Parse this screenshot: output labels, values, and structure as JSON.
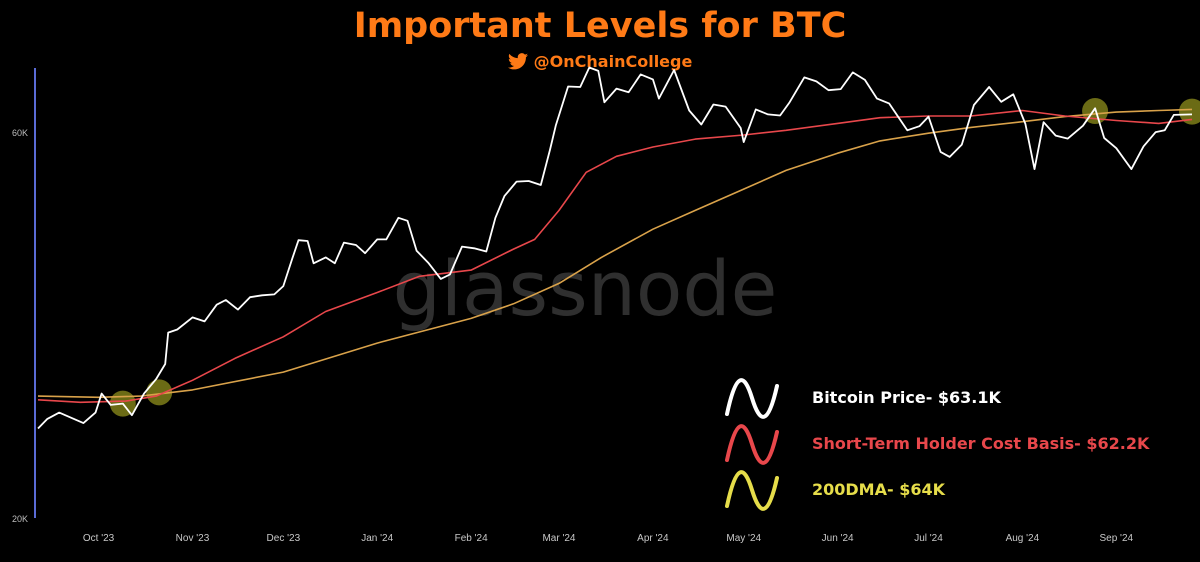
{
  "header": {
    "title": "Important Levels for BTC",
    "handle": "@OnChainCollege"
  },
  "watermark": "glassnode",
  "colors": {
    "title": "#ff7a16",
    "price": "#ffffff",
    "sth": "#e8474b",
    "dma": "#d9a24a",
    "legend_dma": "#e6dd4a",
    "highlight": "#ffff33",
    "axis": "#5a6bd6"
  },
  "chart_data": {
    "type": "line",
    "title": "Important Levels for BTC",
    "xlabel": "",
    "ylabel": "",
    "y_scale": "log",
    "ylim": [
      20000,
      72000
    ],
    "y_ticks": [
      {
        "label": "20K",
        "value": 20000
      },
      {
        "label": "60K",
        "value": 60000
      }
    ],
    "xlim": [
      "2023-09-11",
      "2024-09-26"
    ],
    "x_ticks": [
      {
        "label": "Oct '23",
        "date": "2023-10-01"
      },
      {
        "label": "Nov '23",
        "date": "2023-11-01"
      },
      {
        "label": "Dec '23",
        "date": "2023-12-01"
      },
      {
        "label": "Jan '24",
        "date": "2024-01-01"
      },
      {
        "label": "Feb '24",
        "date": "2024-02-01"
      },
      {
        "label": "Mar '24",
        "date": "2024-03-01"
      },
      {
        "label": "Apr '24",
        "date": "2024-04-01"
      },
      {
        "label": "May '24",
        "date": "2024-05-01"
      },
      {
        "label": "Jun '24",
        "date": "2024-06-01"
      },
      {
        "label": "Jul '24",
        "date": "2024-07-01"
      },
      {
        "label": "Aug '24",
        "date": "2024-08-01"
      },
      {
        "label": "Sep '24",
        "date": "2024-09-01"
      }
    ],
    "legend_position": "bottom-right",
    "grid": false,
    "series": [
      {
        "name": "Bitcoin Price- $63.1K",
        "color": "#ffffff",
        "points": [
          [
            "2023-09-11",
            25800
          ],
          [
            "2023-09-14",
            26500
          ],
          [
            "2023-09-18",
            27000
          ],
          [
            "2023-09-22",
            26600
          ],
          [
            "2023-09-26",
            26200
          ],
          [
            "2023-09-30",
            27000
          ],
          [
            "2023-10-02",
            28500
          ],
          [
            "2023-10-05",
            27600
          ],
          [
            "2023-10-09",
            27700
          ],
          [
            "2023-10-12",
            26800
          ],
          [
            "2023-10-16",
            28500
          ],
          [
            "2023-10-20",
            29700
          ],
          [
            "2023-10-23",
            31000
          ],
          [
            "2023-10-24",
            33900
          ],
          [
            "2023-10-27",
            34200
          ],
          [
            "2023-11-01",
            35400
          ],
          [
            "2023-11-05",
            35000
          ],
          [
            "2023-11-09",
            36700
          ],
          [
            "2023-11-12",
            37200
          ],
          [
            "2023-11-16",
            36200
          ],
          [
            "2023-11-20",
            37500
          ],
          [
            "2023-11-24",
            37700
          ],
          [
            "2023-11-28",
            37800
          ],
          [
            "2023-12-01",
            38700
          ],
          [
            "2023-12-04",
            41900
          ],
          [
            "2023-12-06",
            44100
          ],
          [
            "2023-12-09",
            44000
          ],
          [
            "2023-12-11",
            41300
          ],
          [
            "2023-12-15",
            42000
          ],
          [
            "2023-12-18",
            41300
          ],
          [
            "2023-12-21",
            43800
          ],
          [
            "2023-12-25",
            43500
          ],
          [
            "2023-12-28",
            42500
          ],
          [
            "2024-01-01",
            44200
          ],
          [
            "2024-01-04",
            44200
          ],
          [
            "2024-01-08",
            47000
          ],
          [
            "2024-01-11",
            46600
          ],
          [
            "2024-01-14",
            42800
          ],
          [
            "2024-01-18",
            41300
          ],
          [
            "2024-01-22",
            39500
          ],
          [
            "2024-01-25",
            40000
          ],
          [
            "2024-01-29",
            43300
          ],
          [
            "2024-02-02",
            43100
          ],
          [
            "2024-02-06",
            42700
          ],
          [
            "2024-02-09",
            47000
          ],
          [
            "2024-02-12",
            50000
          ],
          [
            "2024-02-16",
            52100
          ],
          [
            "2024-02-20",
            52200
          ],
          [
            "2024-02-24",
            51600
          ],
          [
            "2024-02-27",
            57000
          ],
          [
            "2024-02-29",
            61200
          ],
          [
            "2024-03-04",
            68300
          ],
          [
            "2024-03-08",
            68200
          ],
          [
            "2024-03-11",
            72100
          ],
          [
            "2024-03-14",
            71400
          ],
          [
            "2024-03-16",
            65300
          ],
          [
            "2024-03-20",
            67900
          ],
          [
            "2024-03-24",
            67200
          ],
          [
            "2024-03-28",
            70700
          ],
          [
            "2024-04-01",
            69700
          ],
          [
            "2024-04-03",
            66000
          ],
          [
            "2024-04-08",
            71600
          ],
          [
            "2024-04-13",
            63800
          ],
          [
            "2024-04-17",
            61300
          ],
          [
            "2024-04-21",
            64900
          ],
          [
            "2024-04-25",
            64500
          ],
          [
            "2024-04-30",
            60700
          ],
          [
            "2024-05-01",
            58300
          ],
          [
            "2024-05-05",
            64000
          ],
          [
            "2024-05-09",
            63100
          ],
          [
            "2024-05-13",
            62900
          ],
          [
            "2024-05-16",
            65200
          ],
          [
            "2024-05-21",
            70100
          ],
          [
            "2024-05-25",
            69300
          ],
          [
            "2024-05-29",
            67600
          ],
          [
            "2024-06-02",
            67800
          ],
          [
            "2024-06-06",
            71100
          ],
          [
            "2024-06-10",
            69600
          ],
          [
            "2024-06-14",
            66000
          ],
          [
            "2024-06-18",
            65100
          ],
          [
            "2024-06-24",
            60300
          ],
          [
            "2024-06-28",
            61000
          ],
          [
            "2024-07-01",
            62700
          ],
          [
            "2024-07-05",
            56700
          ],
          [
            "2024-07-08",
            55900
          ],
          [
            "2024-07-12",
            57900
          ],
          [
            "2024-07-16",
            64800
          ],
          [
            "2024-07-21",
            68200
          ],
          [
            "2024-07-25",
            65400
          ],
          [
            "2024-07-29",
            66800
          ],
          [
            "2024-08-02",
            61400
          ],
          [
            "2024-08-05",
            54000
          ],
          [
            "2024-08-08",
            61700
          ],
          [
            "2024-08-12",
            59400
          ],
          [
            "2024-08-16",
            58900
          ],
          [
            "2024-08-21",
            61100
          ],
          [
            "2024-08-25",
            64200
          ],
          [
            "2024-08-28",
            59000
          ],
          [
            "2024-09-01",
            57300
          ],
          [
            "2024-09-06",
            54000
          ],
          [
            "2024-09-10",
            57600
          ],
          [
            "2024-09-14",
            60000
          ],
          [
            "2024-09-17",
            60300
          ],
          [
            "2024-09-20",
            63000
          ],
          [
            "2024-09-26",
            63100
          ]
        ]
      },
      {
        "name": "Short-Term Holder Cost Basis- $62.2K",
        "color": "#e8474b",
        "points": [
          [
            "2023-09-11",
            28000
          ],
          [
            "2023-09-25",
            27800
          ],
          [
            "2023-10-10",
            27900
          ],
          [
            "2023-10-20",
            28300
          ],
          [
            "2023-11-01",
            29600
          ],
          [
            "2023-11-15",
            31500
          ],
          [
            "2023-12-01",
            33500
          ],
          [
            "2023-12-15",
            36000
          ],
          [
            "2024-01-01",
            38000
          ],
          [
            "2024-01-15",
            39800
          ],
          [
            "2024-02-01",
            40500
          ],
          [
            "2024-02-15",
            43000
          ],
          [
            "2024-02-22",
            44200
          ],
          [
            "2024-03-01",
            48000
          ],
          [
            "2024-03-10",
            53500
          ],
          [
            "2024-03-20",
            56000
          ],
          [
            "2024-04-01",
            57500
          ],
          [
            "2024-04-15",
            58800
          ],
          [
            "2024-05-01",
            59500
          ],
          [
            "2024-05-15",
            60300
          ],
          [
            "2024-06-01",
            61500
          ],
          [
            "2024-06-15",
            62500
          ],
          [
            "2024-07-01",
            62800
          ],
          [
            "2024-07-15",
            62800
          ],
          [
            "2024-08-01",
            63800
          ],
          [
            "2024-08-15",
            62800
          ],
          [
            "2024-09-01",
            62000
          ],
          [
            "2024-09-15",
            61500
          ],
          [
            "2024-09-26",
            62200
          ]
        ]
      },
      {
        "name": "200DMA- $64K",
        "color": "#d9a24a",
        "points": [
          [
            "2023-09-11",
            28300
          ],
          [
            "2023-10-01",
            28200
          ],
          [
            "2023-10-15",
            28300
          ],
          [
            "2023-11-01",
            28800
          ],
          [
            "2023-12-01",
            30300
          ],
          [
            "2024-01-01",
            32900
          ],
          [
            "2024-02-01",
            35300
          ],
          [
            "2024-02-15",
            36800
          ],
          [
            "2024-03-01",
            39000
          ],
          [
            "2024-03-15",
            42000
          ],
          [
            "2024-04-01",
            45500
          ],
          [
            "2024-04-15",
            48000
          ],
          [
            "2024-05-01",
            51000
          ],
          [
            "2024-05-15",
            53800
          ],
          [
            "2024-06-01",
            56500
          ],
          [
            "2024-06-15",
            58500
          ],
          [
            "2024-07-01",
            59800
          ],
          [
            "2024-07-15",
            60800
          ],
          [
            "2024-08-01",
            61800
          ],
          [
            "2024-08-15",
            62700
          ],
          [
            "2024-09-01",
            63500
          ],
          [
            "2024-09-15",
            63800
          ],
          [
            "2024-09-26",
            64000
          ]
        ]
      }
    ],
    "highlights": [
      [
        "2023-10-09",
        27700
      ],
      [
        "2023-10-21",
        28600
      ],
      [
        "2024-08-25",
        63700
      ],
      [
        "2024-09-26",
        63600
      ]
    ]
  },
  "legend": [
    {
      "label": "Bitcoin Price- $63.1K",
      "color": "#ffffff"
    },
    {
      "label": "Short-Term Holder Cost Basis- $62.2K",
      "color": "#e8474b"
    },
    {
      "label": "200DMA- $64K",
      "color": "#e6dd4a"
    }
  ]
}
